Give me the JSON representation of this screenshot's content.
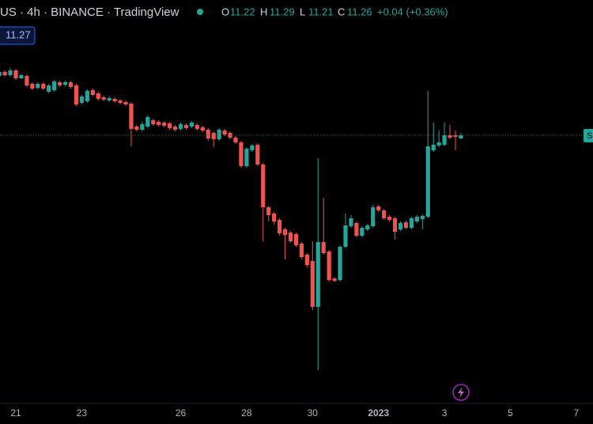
{
  "chart_data": {
    "type": "candlestick",
    "title": "US · 4h · BINANCE · TradingView",
    "legend_values": {
      "open_label": "O",
      "open": 11.22,
      "high_label": "H",
      "high": 11.29,
      "low_label": "L",
      "low": 11.21,
      "close_label": "C",
      "close": 11.26,
      "change": "+0.04 (+0.36%)"
    },
    "price_label": 11.27,
    "right_label": "S",
    "up_color": "#26a69a",
    "down_color": "#ef5350",
    "ylim": [
      7.87,
      12.97
    ],
    "categories": [
      null,
      null,
      null,
      "21",
      null,
      null,
      null,
      null,
      null,
      null,
      null,
      null,
      null,
      null,
      null,
      "23",
      null,
      null,
      null,
      null,
      null,
      null,
      null,
      null,
      null,
      null,
      null,
      null,
      null,
      null,
      null,
      null,
      null,
      "26",
      null,
      null,
      null,
      null,
      null,
      null,
      null,
      null,
      null,
      null,
      null,
      "28",
      null,
      null,
      null,
      null,
      null,
      null,
      null,
      null,
      null,
      null,
      null,
      "30",
      null,
      null,
      null,
      null,
      null,
      null,
      null,
      null,
      null,
      null,
      null,
      "2023",
      null,
      null,
      null,
      null,
      null,
      null,
      null,
      null,
      null,
      null,
      null,
      "3",
      null,
      null,
      null,
      null,
      null,
      null,
      null,
      null,
      null,
      null,
      null,
      "5",
      null,
      null,
      null,
      null,
      null,
      null,
      null,
      null,
      null,
      null,
      null,
      "7",
      null,
      null
    ],
    "open": [
      12.01,
      12.06,
      12.02,
      12.08,
      11.98,
      12.01,
      11.91,
      11.86,
      11.91,
      11.81,
      11.83,
      11.93,
      11.9,
      11.93,
      11.89,
      11.67,
      11.69,
      11.83,
      11.79,
      11.74,
      11.7,
      11.72,
      11.7,
      11.68,
      11.66,
      11.37,
      11.33,
      11.37,
      11.45,
      11.43,
      11.42,
      11.41,
      11.37,
      11.34,
      11.39,
      11.37,
      11.39,
      11.36,
      11.33,
      11.29,
      11.21,
      11.32,
      11.29,
      11.23,
      11.17,
      10.87,
      11.07,
      11.14,
      10.89,
      10.35,
      10.27,
      10.19,
      10.07,
      10.03,
      10.01,
      9.89,
      9.75,
      9.67,
      9.09,
      9.91,
      9.79,
      9.45,
      9.43,
      9.85,
      10.11,
      10.15,
      9.99,
      10.07,
      10.11,
      10.36,
      10.31,
      10.23,
      10.21,
      10.07,
      10.16,
      10.09,
      10.17,
      10.2,
      10.23,
      11.07,
      11.13,
      11.14,
      11.26,
      11.26,
      11.22,
      null,
      null,
      null,
      null,
      null,
      null,
      null,
      null,
      null,
      null,
      null,
      null,
      null,
      null,
      null,
      null,
      null,
      null,
      null,
      null,
      null,
      null,
      null
    ],
    "high": [
      12.09,
      12.08,
      12.11,
      12.1,
      12.04,
      12.03,
      11.93,
      11.93,
      11.93,
      11.91,
      11.96,
      11.95,
      11.95,
      11.95,
      11.91,
      11.77,
      11.84,
      11.85,
      11.81,
      11.76,
      11.75,
      11.74,
      11.72,
      11.7,
      11.68,
      11.39,
      11.43,
      11.51,
      11.47,
      11.45,
      11.44,
      11.43,
      11.39,
      11.42,
      11.41,
      11.44,
      11.41,
      11.38,
      11.35,
      11.31,
      11.35,
      11.34,
      11.31,
      11.25,
      11.19,
      11.11,
      11.15,
      11.16,
      10.91,
      10.37,
      10.29,
      10.21,
      10.09,
      10.05,
      10.03,
      9.91,
      9.77,
      9.92,
      10.97,
      10.47,
      9.81,
      9.47,
      9.87,
      10.27,
      10.25,
      10.17,
      10.11,
      10.14,
      10.38,
      10.38,
      10.33,
      10.25,
      10.23,
      10.17,
      10.18,
      10.23,
      10.25,
      10.26,
      11.82,
      11.42,
      11.32,
      11.42,
      11.39,
      11.32,
      11.29,
      null,
      null,
      null,
      null,
      null,
      null,
      null,
      null,
      null,
      null,
      null,
      null,
      null,
      null,
      null,
      null,
      null,
      null,
      null,
      null,
      null,
      null,
      null
    ],
    "low": [
      11.99,
      12.0,
      12.0,
      11.96,
      11.97,
      11.87,
      11.83,
      11.84,
      11.83,
      11.79,
      11.81,
      11.87,
      11.88,
      11.85,
      11.63,
      11.65,
      11.67,
      11.75,
      11.7,
      11.69,
      11.68,
      11.67,
      11.65,
      11.63,
      11.12,
      11.31,
      11.31,
      11.35,
      11.38,
      11.37,
      11.36,
      11.33,
      11.31,
      11.32,
      11.33,
      11.35,
      11.32,
      11.3,
      11.19,
      11.11,
      11.19,
      11.25,
      11.21,
      11.15,
      10.85,
      10.85,
      11.05,
      10.87,
      9.92,
      10.17,
      10.13,
      9.99,
      9.69,
      9.9,
      9.85,
      9.69,
      9.59,
      9.05,
      8.29,
      9.75,
      9.41,
      9.4,
      9.41,
      9.83,
      10.09,
      9.97,
      9.97,
      10.05,
      10.09,
      10.29,
      10.19,
      10.17,
      9.94,
      10.05,
      10.07,
      10.07,
      10.15,
      10.07,
      10.21,
      11.05,
      11.11,
      11.12,
      11.21,
      11.07,
      11.21,
      null,
      null,
      null,
      null,
      null,
      null,
      null,
      null,
      null,
      null,
      null,
      null,
      null,
      null,
      null,
      null,
      null,
      null,
      null,
      null,
      null,
      null,
      null
    ],
    "close": [
      12.06,
      12.02,
      12.08,
      11.98,
      12.02,
      11.89,
      11.85,
      11.91,
      11.85,
      11.89,
      11.94,
      11.89,
      11.93,
      11.87,
      11.65,
      11.75,
      11.82,
      11.77,
      11.72,
      11.71,
      11.73,
      11.69,
      11.67,
      11.65,
      11.34,
      11.33,
      11.4,
      11.49,
      11.4,
      11.39,
      11.38,
      11.35,
      11.33,
      11.4,
      11.35,
      11.42,
      11.34,
      11.32,
      11.22,
      11.21,
      11.33,
      11.27,
      11.23,
      11.17,
      10.87,
      11.09,
      11.13,
      10.89,
      10.35,
      10.25,
      10.17,
      10.02,
      10.0,
      9.92,
      9.87,
      9.72,
      9.62,
      9.09,
      9.91,
      9.77,
      9.43,
      9.42,
      9.85,
      10.12,
      10.21,
      9.99,
      10.09,
      10.12,
      10.35,
      10.31,
      10.21,
      10.19,
      10.04,
      10.15,
      10.09,
      10.21,
      10.23,
      10.24,
      11.12,
      11.14,
      11.17,
      11.26,
      11.23,
      11.24,
      11.26,
      null,
      null,
      null,
      null,
      null,
      null,
      null,
      null,
      null,
      null,
      null,
      null,
      null,
      null,
      null,
      null,
      null,
      null,
      null,
      null,
      null,
      null,
      null
    ]
  }
}
